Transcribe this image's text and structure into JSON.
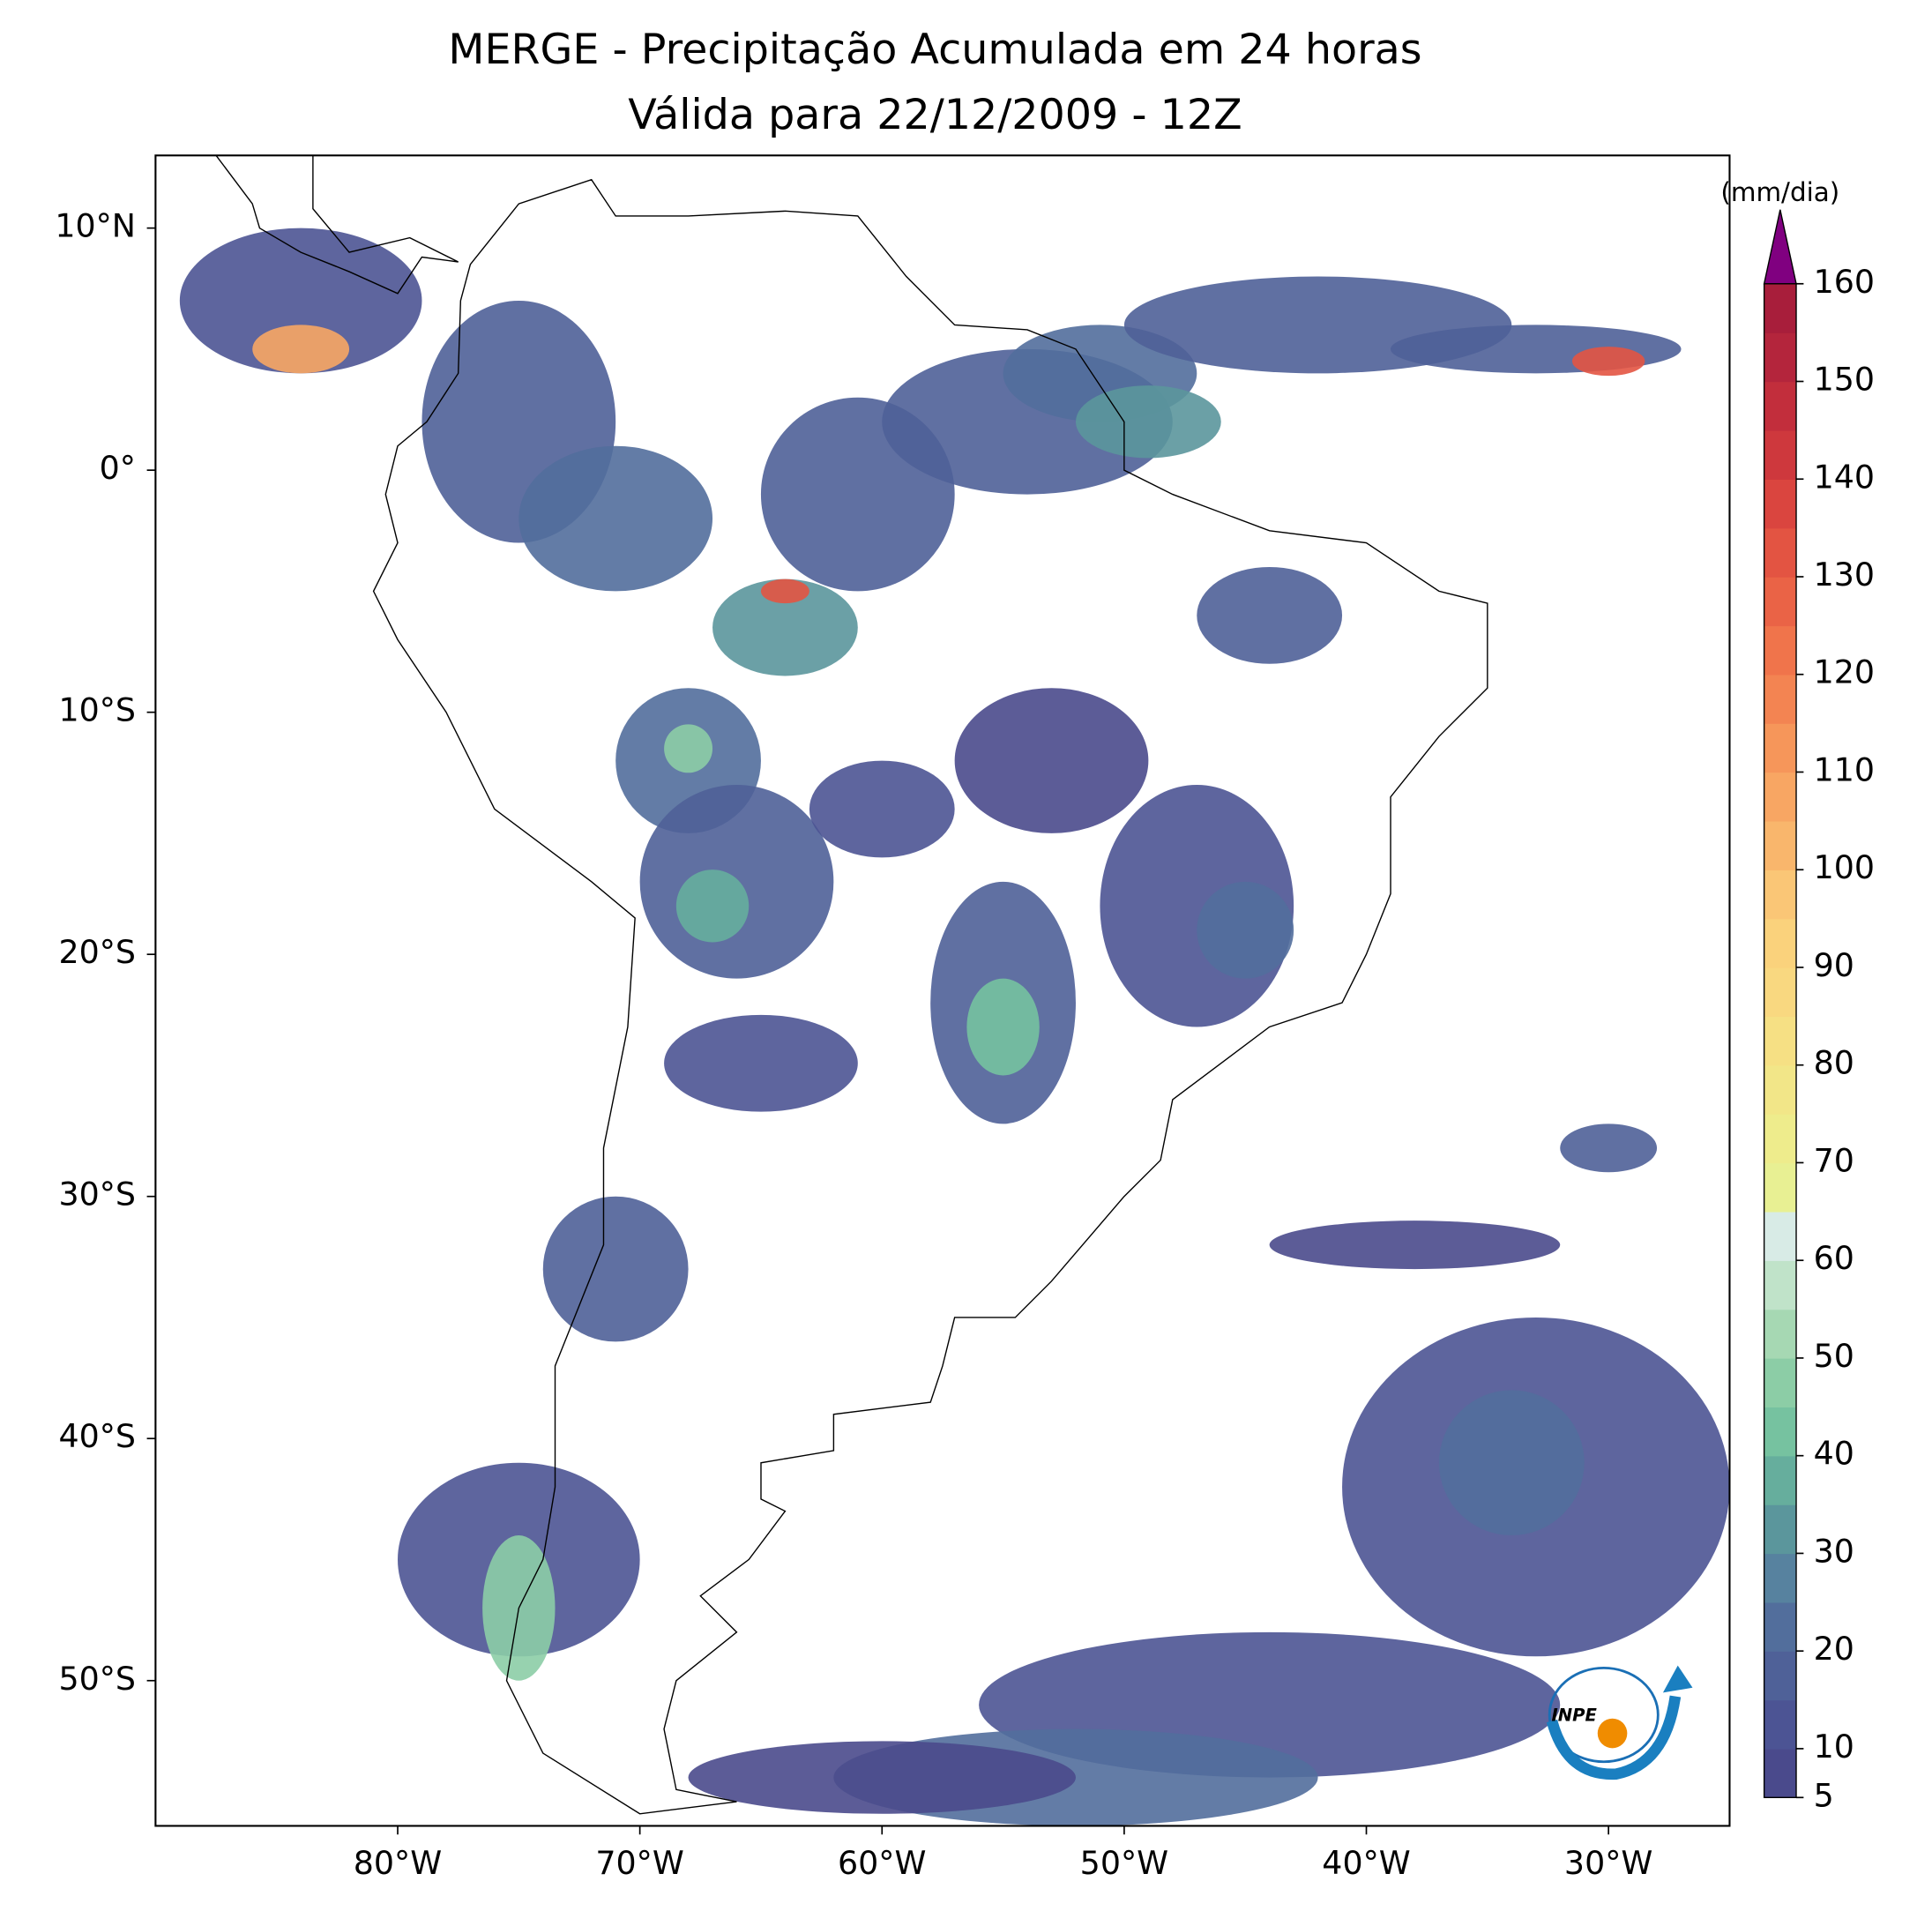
{
  "chart_data": {
    "type": "map",
    "title": "MERGE - Precipitação Acumulada em 24 horas",
    "subtitle": "Válida para 22/12/2009 - 12Z",
    "xlim": [
      -90,
      -25
    ],
    "ylim": [
      -56,
      13
    ],
    "xticks": [
      {
        "value": -80,
        "label": "80°W"
      },
      {
        "value": -70,
        "label": "70°W"
      },
      {
        "value": -60,
        "label": "60°W"
      },
      {
        "value": -50,
        "label": "50°W"
      },
      {
        "value": -40,
        "label": "40°W"
      },
      {
        "value": -30,
        "label": "30°W"
      }
    ],
    "yticks": [
      {
        "value": 10,
        "label": "10°N"
      },
      {
        "value": 0,
        "label": "0°"
      },
      {
        "value": -10,
        "label": "10°S"
      },
      {
        "value": -20,
        "label": "20°S"
      },
      {
        "value": -30,
        "label": "30°S"
      },
      {
        "value": -40,
        "label": "40°S"
      },
      {
        "value": -50,
        "label": "50°S"
      }
    ],
    "colorbar": {
      "label": "(mm/dia)",
      "levels": [
        5,
        10,
        15,
        20,
        25,
        30,
        35,
        40,
        45,
        50,
        55,
        60,
        65,
        70,
        75,
        80,
        85,
        90,
        95,
        100,
        105,
        110,
        115,
        120,
        125,
        130,
        135,
        140,
        145,
        150,
        155,
        160
      ],
      "colors": [
        "#4a4a8c",
        "#4c5494",
        "#4f6198",
        "#526e9c",
        "#57829f",
        "#5b969c",
        "#66ae9d",
        "#76c2a0",
        "#8ccda6",
        "#a6d8b3",
        "#c0e3c9",
        "#d8ebe6",
        "#e8f093",
        "#eeec8c",
        "#f2e688",
        "#f6e084",
        "#f9d880",
        "#fad27c",
        "#fac676",
        "#f9b66c",
        "#f8a663",
        "#f6965a",
        "#f38452",
        "#f0744b",
        "#ea6346",
        "#e35442",
        "#da453f",
        "#ce383d",
        "#c22e3c",
        "#b4253c",
        "#a81e3b"
      ],
      "extend_color": "#800080",
      "ticks": [
        5,
        10,
        20,
        30,
        40,
        50,
        60,
        70,
        80,
        90,
        100,
        110,
        120,
        130,
        140,
        150,
        160
      ]
    },
    "logo": "INPE"
  }
}
